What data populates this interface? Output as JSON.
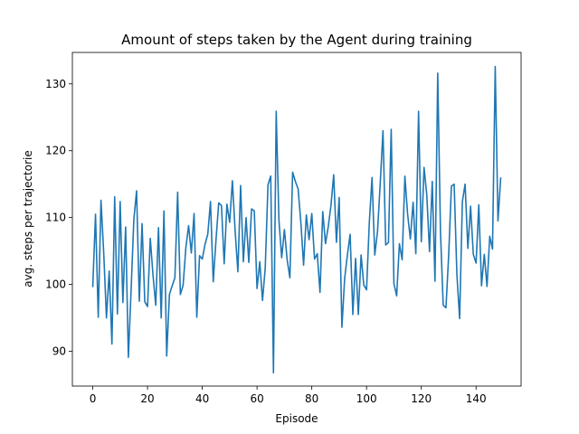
{
  "chart_data": {
    "type": "line",
    "title": "Amount of steps taken by the Agent during training",
    "xlabel": "Episode",
    "ylabel": "avg. steps per trajectorie",
    "xlim": [
      -7.45,
      156.45
    ],
    "ylim": [
      84.8,
      134.7
    ],
    "xticks": [
      0,
      20,
      40,
      60,
      80,
      100,
      120,
      140
    ],
    "yticks": [
      90,
      100,
      110,
      120,
      130
    ],
    "grid": false,
    "color": "#1f77b4",
    "series": [
      {
        "values": [
          99.7,
          110.5,
          95.1,
          112.6,
          104.7,
          95.0,
          102.0,
          91.1,
          113.1,
          95.6,
          112.4,
          97.3,
          108.6,
          89.1,
          99.1,
          109.7,
          114.0,
          97.5,
          109.1,
          97.4,
          96.7,
          106.9,
          101.4,
          96.9,
          108.5,
          95.0,
          111.0,
          89.3,
          98.5,
          99.8,
          101.0,
          113.8,
          98.5,
          99.9,
          105.5,
          108.8,
          104.7,
          110.6,
          95.1,
          104.3,
          103.8,
          106.0,
          107.5,
          112.4,
          100.4,
          106.6,
          112.2,
          111.8,
          103.1,
          112.0,
          109.3,
          115.5,
          108.0,
          101.9,
          114.8,
          103.4,
          110.0,
          103.3,
          111.3,
          111.0,
          99.4,
          103.4,
          97.6,
          102.5,
          114.9,
          116.2,
          86.8,
          125.9,
          109.6,
          104.0,
          108.2,
          103.7,
          101.0,
          116.8,
          115.4,
          114.3,
          109.3,
          102.9,
          110.4,
          106.7,
          110.6,
          103.8,
          104.6,
          98.8,
          110.9,
          106.1,
          108.6,
          111.8,
          116.4,
          106.3,
          113.0,
          93.6,
          100.9,
          104.4,
          107.5,
          95.5,
          103.9,
          95.5,
          104.4,
          99.9,
          99.2,
          109.2,
          116.0,
          104.4,
          107.9,
          115.1,
          123.0,
          105.9,
          106.3,
          123.2,
          100.1,
          98.3,
          106.1,
          103.7,
          116.2,
          110.5,
          106.8,
          112.3,
          104.6,
          125.9,
          106.4,
          117.5,
          113.4,
          104.9,
          115.4,
          100.5,
          131.6,
          107.9,
          96.9,
          96.5,
          104.4,
          114.7,
          115.0,
          101.5,
          94.9,
          112.4,
          115.0,
          105.4,
          111.7,
          104.5,
          103.2,
          111.9,
          99.8,
          104.5,
          99.7,
          107.2,
          105.3,
          132.6,
          109.5,
          115.9
        ]
      }
    ]
  }
}
